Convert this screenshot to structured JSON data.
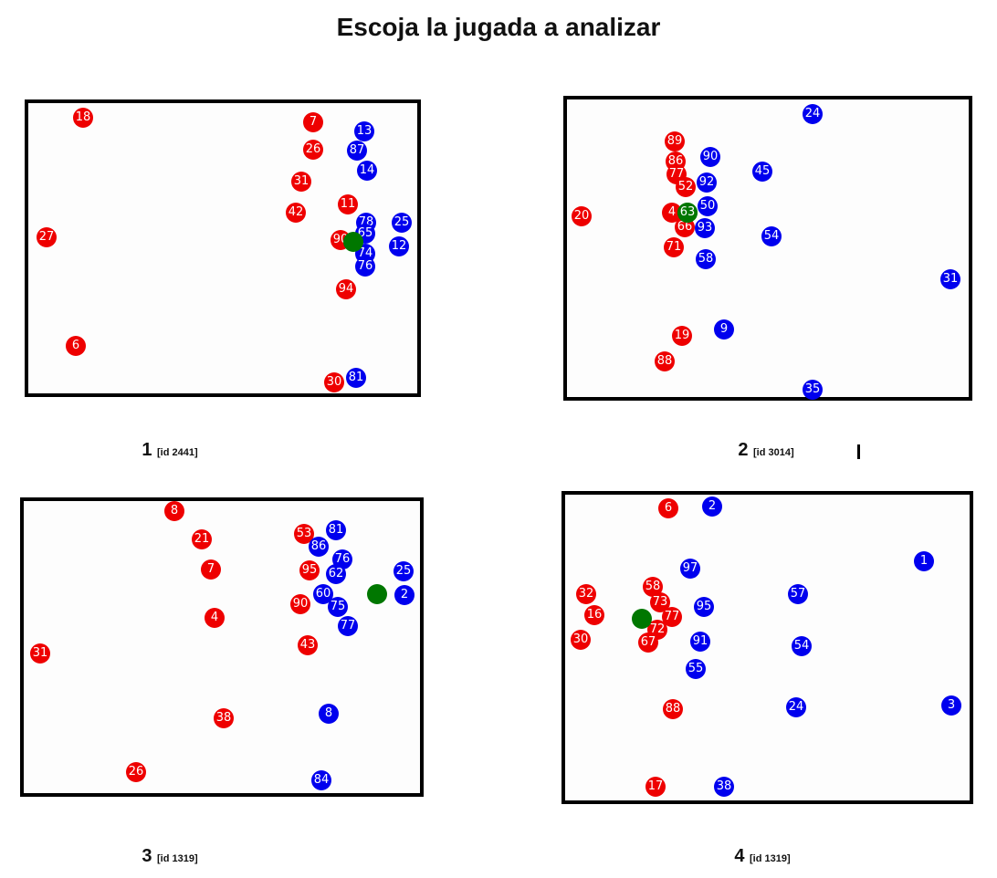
{
  "title": "Escoja la jugada a analizar",
  "colors": {
    "team_a": "#ee0000",
    "team_b": "#0000ee",
    "ball": "#007700"
  },
  "plays": [
    {
      "number": "1",
      "id_label": "[id 2441]",
      "red": [
        "18",
        "7",
        "26",
        "31",
        "11",
        "42",
        "90",
        "94",
        "27",
        "6",
        "30"
      ],
      "blue": [
        "13",
        "87",
        "14",
        "78",
        "25",
        "65",
        "74",
        "12",
        "76",
        "81"
      ]
    },
    {
      "number": "2",
      "id_label": "[id 3014]",
      "red": [
        "89",
        "86",
        "77",
        "52",
        "4",
        "66",
        "71",
        "20",
        "19",
        "88"
      ],
      "blue": [
        "24",
        "90",
        "92",
        "45",
        "50",
        "93",
        "54",
        "58",
        "31",
        "9",
        "35"
      ]
    },
    {
      "number": "3",
      "id_label": "[id 1319]",
      "red": [
        "8",
        "21",
        "7",
        "53",
        "95",
        "90",
        "4",
        "43",
        "31",
        "38",
        "26"
      ],
      "blue": [
        "81",
        "86",
        "76",
        "62",
        "25",
        "60",
        "2",
        "75",
        "77",
        "8",
        "84"
      ]
    },
    {
      "number": "4",
      "id_label": "[id 1319]",
      "red": [
        "6",
        "58",
        "32",
        "73",
        "16",
        "77",
        "72",
        "30",
        "67",
        "88",
        "17"
      ],
      "blue": [
        "2",
        "97",
        "1",
        "95",
        "57",
        "91",
        "54",
        "55",
        "24",
        "3",
        "38"
      ]
    }
  ]
}
